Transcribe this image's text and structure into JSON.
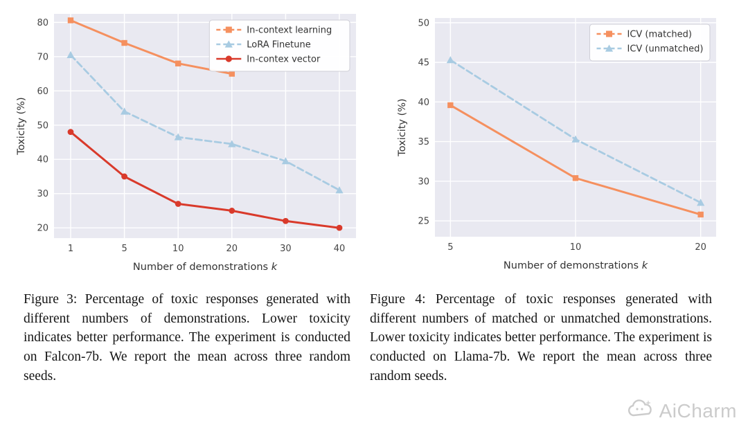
{
  "watermark": {
    "text": "AiCharm"
  },
  "figures": [
    {
      "caption": "Figure 3: Percentage of toxic responses generated with different numbers of demonstrations.  Lower toxicity indicates better performance.  The experiment is conducted on Falcon-7b.  We report the mean across three random seeds."
    },
    {
      "caption": "Figure 4: Percentage of toxic responses generated with different numbers of matched or unmatched demonstrations. Lower toxicity indicates better performance. The experiment is conducted on Llama-7b. We report the mean across three random seeds."
    }
  ],
  "chart_data": [
    {
      "id": "figure3",
      "type": "line",
      "title": "",
      "xlabel": "Number of demonstrations",
      "xlabel_italic": "k",
      "ylabel": "Toxicity (%)",
      "x_ticks": [
        "1",
        "5",
        "10",
        "20",
        "30",
        "40"
      ],
      "y_ticks": [
        20,
        30,
        40,
        50,
        60,
        70,
        80
      ],
      "ylim": [
        17,
        82.5
      ],
      "grid": true,
      "plot_bg": "#e9e9f1",
      "legend_position": "upper right",
      "series": [
        {
          "name": "In-context learning",
          "color": "#f5905f",
          "marker": "square",
          "dash": false,
          "legend_dash": true,
          "width": 3,
          "x": [
            1,
            5,
            10,
            20
          ],
          "y": [
            80.6,
            74,
            68,
            65
          ]
        },
        {
          "name": "LoRA Finetune",
          "color": "#a8cbe2",
          "marker": "triangle",
          "dash": true,
          "legend_dash": true,
          "width": 2.8,
          "x": [
            1,
            5,
            10,
            20,
            30,
            40
          ],
          "y": [
            70.5,
            54,
            46.5,
            44.5,
            39.5,
            31
          ]
        },
        {
          "name": "In-contex vector",
          "color": "#d93a2b",
          "marker": "circle",
          "dash": false,
          "legend_dash": false,
          "width": 3,
          "x": [
            1,
            5,
            10,
            20,
            30,
            40
          ],
          "y": [
            48,
            35,
            27,
            25,
            22,
            20
          ]
        }
      ]
    },
    {
      "id": "figure4",
      "type": "line",
      "title": "",
      "xlabel": "Number of demonstrations",
      "xlabel_italic": "k",
      "ylabel": "Toxicity (%)",
      "x_ticks": [
        "5",
        "10",
        "20"
      ],
      "y_ticks": [
        25,
        30,
        35,
        40,
        45,
        50
      ],
      "ylim": [
        23,
        50.6
      ],
      "grid": true,
      "plot_bg": "#e9e9f1",
      "legend_position": "upper right",
      "series": [
        {
          "name": "ICV (matched)",
          "color": "#f5905f",
          "marker": "square",
          "dash": false,
          "legend_dash": true,
          "width": 3,
          "x": [
            5,
            10,
            20
          ],
          "y": [
            39.6,
            30.4,
            25.8
          ]
        },
        {
          "name": "ICV (unmatched)",
          "color": "#a8cbe2",
          "marker": "triangle",
          "dash": true,
          "legend_dash": true,
          "width": 2.8,
          "x": [
            5,
            10,
            20
          ],
          "y": [
            45.3,
            35.3,
            27.3
          ]
        }
      ]
    }
  ]
}
